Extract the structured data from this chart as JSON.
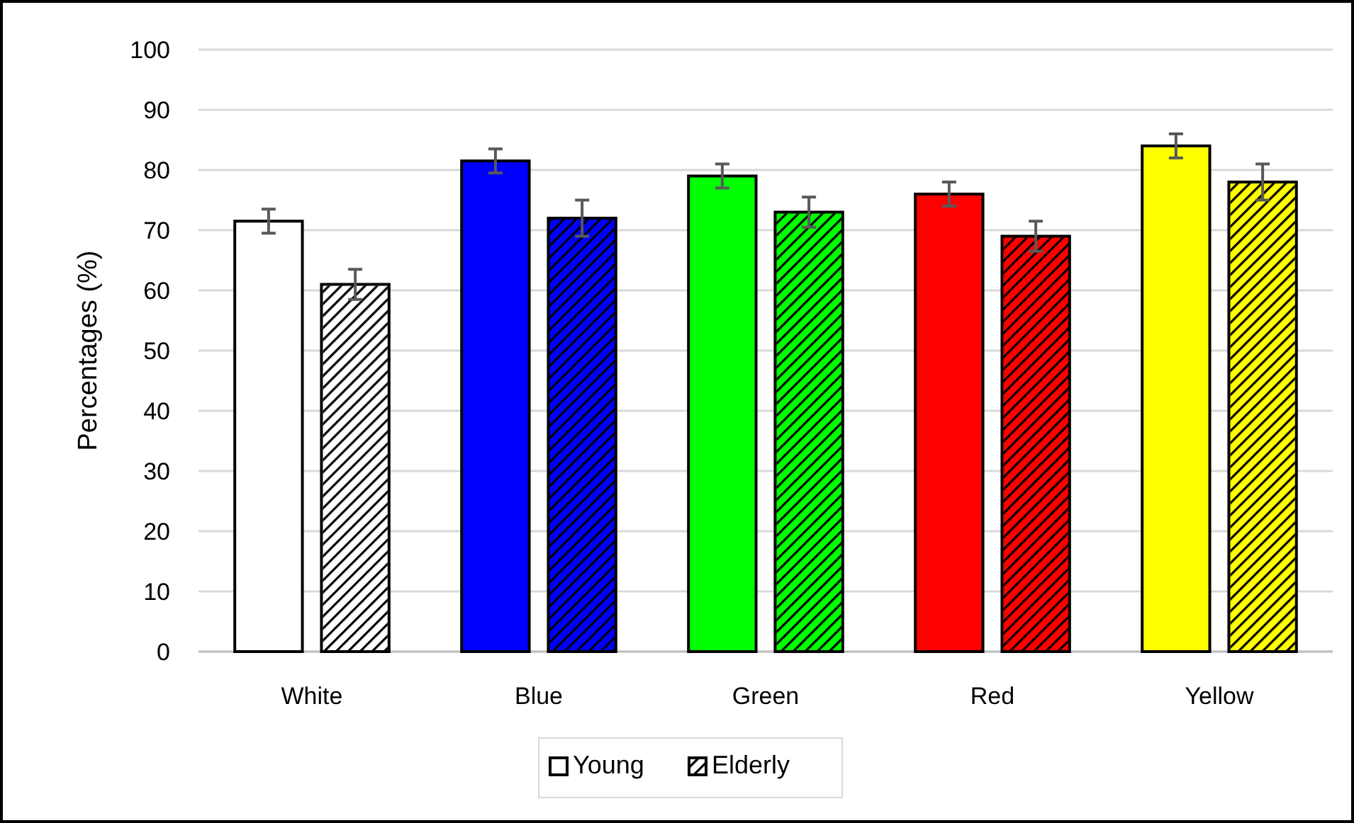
{
  "chart_data": {
    "type": "bar",
    "ylabel": "Percentages (%)",
    "categories": [
      "White",
      "Blue",
      "Green",
      "Red",
      "Yellow"
    ],
    "series": [
      {
        "name": "Young",
        "colors": [
          "#ffffff",
          "#0000ff",
          "#00ff00",
          "#ff0000",
          "#ffff00"
        ],
        "values": [
          71.5,
          81.5,
          79,
          76,
          84
        ],
        "errors": [
          2,
          2,
          2,
          2,
          2
        ]
      },
      {
        "name": "Elderly",
        "colors": [
          "#ffffff",
          "#0000ff",
          "#00ff00",
          "#ff0000",
          "#ffff00"
        ],
        "values": [
          61,
          72,
          73,
          69,
          78
        ],
        "errors": [
          2.5,
          3,
          2.5,
          2.5,
          3
        ]
      }
    ],
    "ylim": [
      0,
      100
    ],
    "yticks": [
      0,
      10,
      20,
      30,
      40,
      50,
      60,
      70,
      80,
      90,
      100
    ],
    "grid": "y",
    "legend": "bottom"
  }
}
